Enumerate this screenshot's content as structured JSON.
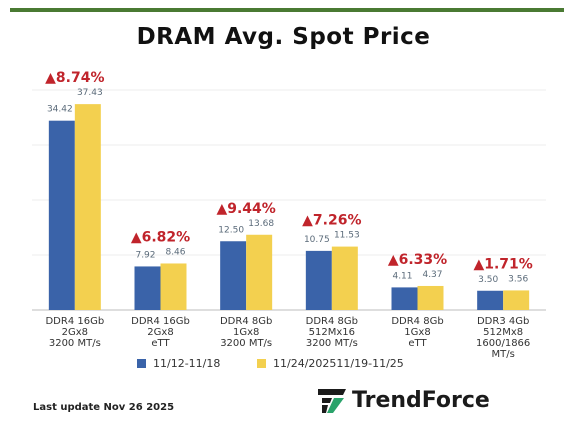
{
  "title": "DRAM Avg. Spot Price",
  "footer": {
    "last_update": "Last update Nov 26  2025",
    "brand": "TrendForce"
  },
  "colors": {
    "series1": "#3a63a9",
    "series2": "#f3d04f",
    "arrow": "#c0242b"
  },
  "chart_data": {
    "type": "bar",
    "title": "DRAM Avg. Spot Price",
    "categories": [
      [
        "DDR4 16Gb",
        "2Gx8",
        "3200 MT/s"
      ],
      [
        "DDR4 16Gb",
        "2Gx8",
        "eTT"
      ],
      [
        "DDR4 8Gb",
        "1Gx8",
        "3200 MT/s"
      ],
      [
        "DDR4 8Gb",
        "512Mx16",
        "3200 MT/s"
      ],
      [
        "DDR4 8Gb",
        "1Gx8",
        "eTT"
      ],
      [
        "DDR3 4Gb",
        "512Mx8",
        "1600/1866",
        "MT/s"
      ]
    ],
    "series": [
      {
        "name": "11/12-11/18",
        "values": [
          34.42,
          7.92,
          12.5,
          10.75,
          4.11,
          3.5
        ],
        "labels": [
          "34.42",
          "7.92",
          "12.50",
          "10.75",
          "4.11",
          "3.50"
        ]
      },
      {
        "name": "11/24/202511/19-11/25",
        "values": [
          37.43,
          8.46,
          13.68,
          11.53,
          4.37,
          3.56
        ],
        "labels": [
          "37.43",
          "8.46",
          "13.68",
          "11.53",
          "4.37",
          "3.56"
        ]
      }
    ],
    "changes": [
      "▲8.74%",
      "▲6.82%",
      "▲9.44%",
      "▲7.26%",
      "▲6.33%",
      "▲1.71%"
    ],
    "ylim": [
      0,
      40
    ],
    "grid": true,
    "legend": "bottom"
  }
}
